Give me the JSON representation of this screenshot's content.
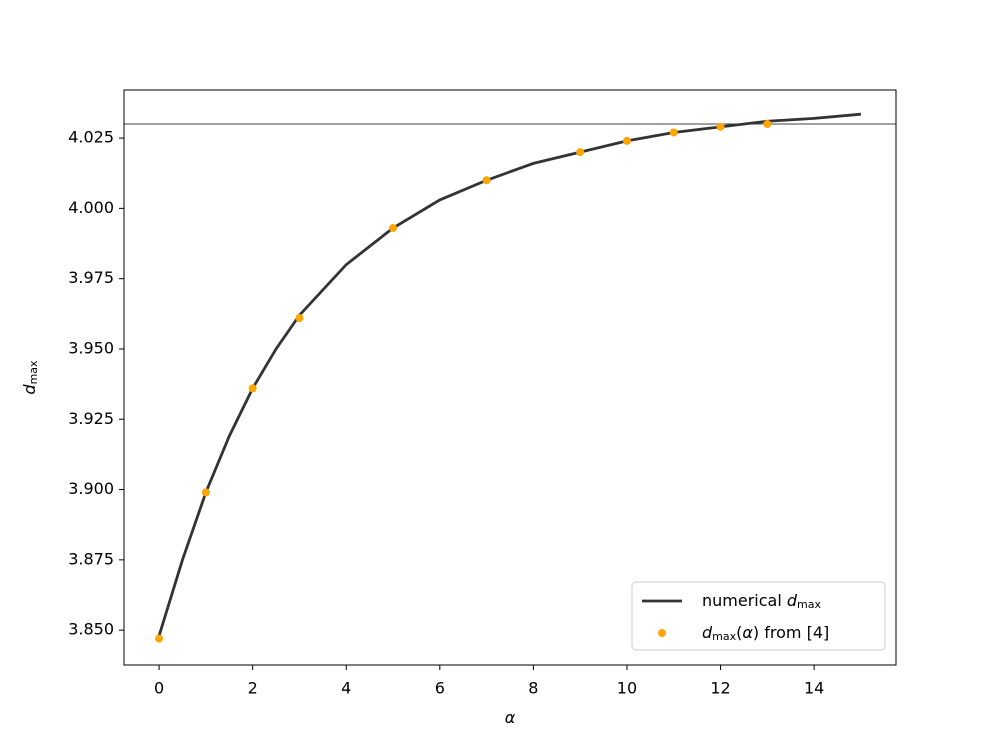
{
  "chart_data": {
    "type": "line",
    "x_label": "α",
    "y_label": "d_max",
    "xlim": [
      -0.75,
      15.75
    ],
    "ylim": [
      3.8376,
      4.0421
    ],
    "xticks": [
      0,
      2,
      4,
      6,
      8,
      10,
      12,
      14
    ],
    "yticks": [
      {
        "value": 3.85,
        "label": "3.850"
      },
      3.875,
      {
        "value": 3.9,
        "label": "3.900"
      },
      3.925,
      {
        "value": 3.95,
        "label": "3.950"
      },
      3.975,
      {
        "value": 4.0,
        "label": "4.000"
      },
      4.025
    ],
    "hline": 4.03,
    "hline_color": "#000000",
    "legend": "lower right",
    "grid": false,
    "series": [
      {
        "name": "numerical d_max",
        "kind": "line",
        "color": "#333333",
        "x": [
          0,
          0.5,
          1,
          1.5,
          2,
          2.5,
          3,
          4,
          5,
          6,
          7,
          8,
          9,
          10,
          11,
          12,
          13,
          14,
          15
        ],
        "values": [
          3.848,
          3.875,
          3.899,
          3.919,
          3.936,
          3.95,
          3.962,
          3.98,
          3.993,
          4.003,
          4.01,
          4.016,
          4.02,
          4.024,
          4.027,
          4.029,
          4.031,
          4.032,
          4.0335
        ]
      },
      {
        "name": "d_max(α) from [4]",
        "kind": "points",
        "color": "#ffa500",
        "x": [
          0,
          1,
          2,
          3,
          5,
          7,
          9,
          10,
          11,
          12,
          13
        ],
        "values": [
          3.847,
          3.899,
          3.936,
          3.961,
          3.993,
          4.01,
          4.02,
          4.024,
          4.027,
          4.029,
          4.03
        ]
      }
    ]
  }
}
